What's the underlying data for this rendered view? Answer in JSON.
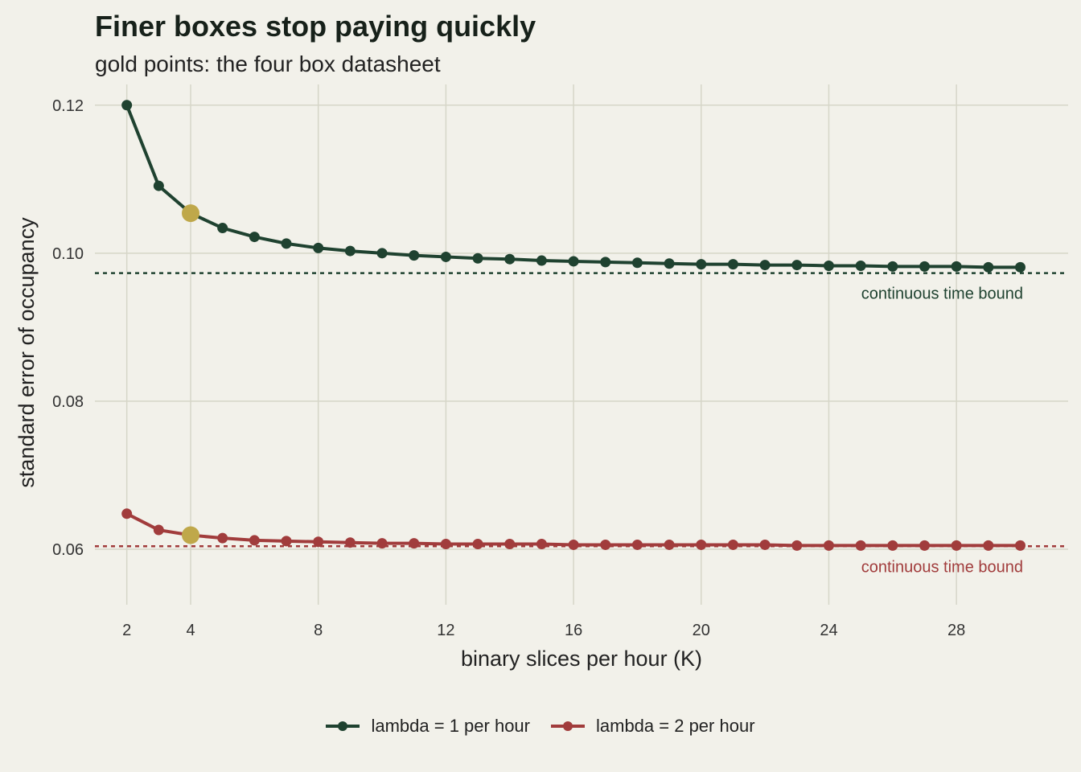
{
  "title": "Finer boxes stop paying quickly",
  "subtitle": "gold points: the four box datasheet",
  "colors": {
    "background": "#f2f1ea",
    "grid": "#d6d6c8",
    "series1": "#1f4230",
    "series2": "#a13c3c",
    "highlight": "#bfa84a"
  },
  "chart_data": {
    "type": "line",
    "xlabel": "binary slices per hour (K)",
    "ylabel": "standard error of occupancy",
    "xlim": [
      1,
      31.5
    ],
    "ylim": [
      0.0525,
      0.1228
    ],
    "x_ticks": [
      2,
      4,
      8,
      12,
      16,
      20,
      24,
      28
    ],
    "y_ticks": [
      0.06,
      0.08,
      0.1,
      0.12
    ],
    "y_tick_labels": [
      "0.06",
      "0.08",
      "0.10",
      "0.12"
    ],
    "grid": true,
    "legend_position": "bottom",
    "x": [
      2,
      3,
      4,
      5,
      6,
      7,
      8,
      9,
      10,
      11,
      12,
      13,
      14,
      15,
      16,
      17,
      18,
      19,
      20,
      21,
      22,
      23,
      24,
      25,
      26,
      27,
      28,
      29,
      30
    ],
    "series": [
      {
        "name": "lambda = 1 per hour",
        "color": "#1f4230",
        "values": [
          0.12,
          0.1091,
          0.1054,
          0.1034,
          0.1022,
          0.1013,
          0.1007,
          0.1003,
          0.1,
          0.0997,
          0.0995,
          0.0993,
          0.0992,
          0.099,
          0.0989,
          0.0988,
          0.0987,
          0.0986,
          0.0985,
          0.0985,
          0.0984,
          0.0984,
          0.0983,
          0.0983,
          0.0982,
          0.0982,
          0.0982,
          0.0981,
          0.0981
        ],
        "bound": 0.0973,
        "bound_label": "continuous time bound"
      },
      {
        "name": "lambda = 2 per hour",
        "color": "#a13c3c",
        "values": [
          0.0648,
          0.0626,
          0.0619,
          0.0615,
          0.0612,
          0.0611,
          0.061,
          0.0609,
          0.0608,
          0.0608,
          0.0607,
          0.0607,
          0.0607,
          0.0607,
          0.0606,
          0.0606,
          0.0606,
          0.0606,
          0.0606,
          0.0606,
          0.0606,
          0.0605,
          0.0605,
          0.0605,
          0.0605,
          0.0605,
          0.0605,
          0.0605,
          0.0605
        ],
        "bound": 0.0604,
        "bound_label": "continuous time bound"
      }
    ],
    "highlight": {
      "x": 4,
      "color": "#bfa84a",
      "note": "the four box datasheet"
    }
  }
}
